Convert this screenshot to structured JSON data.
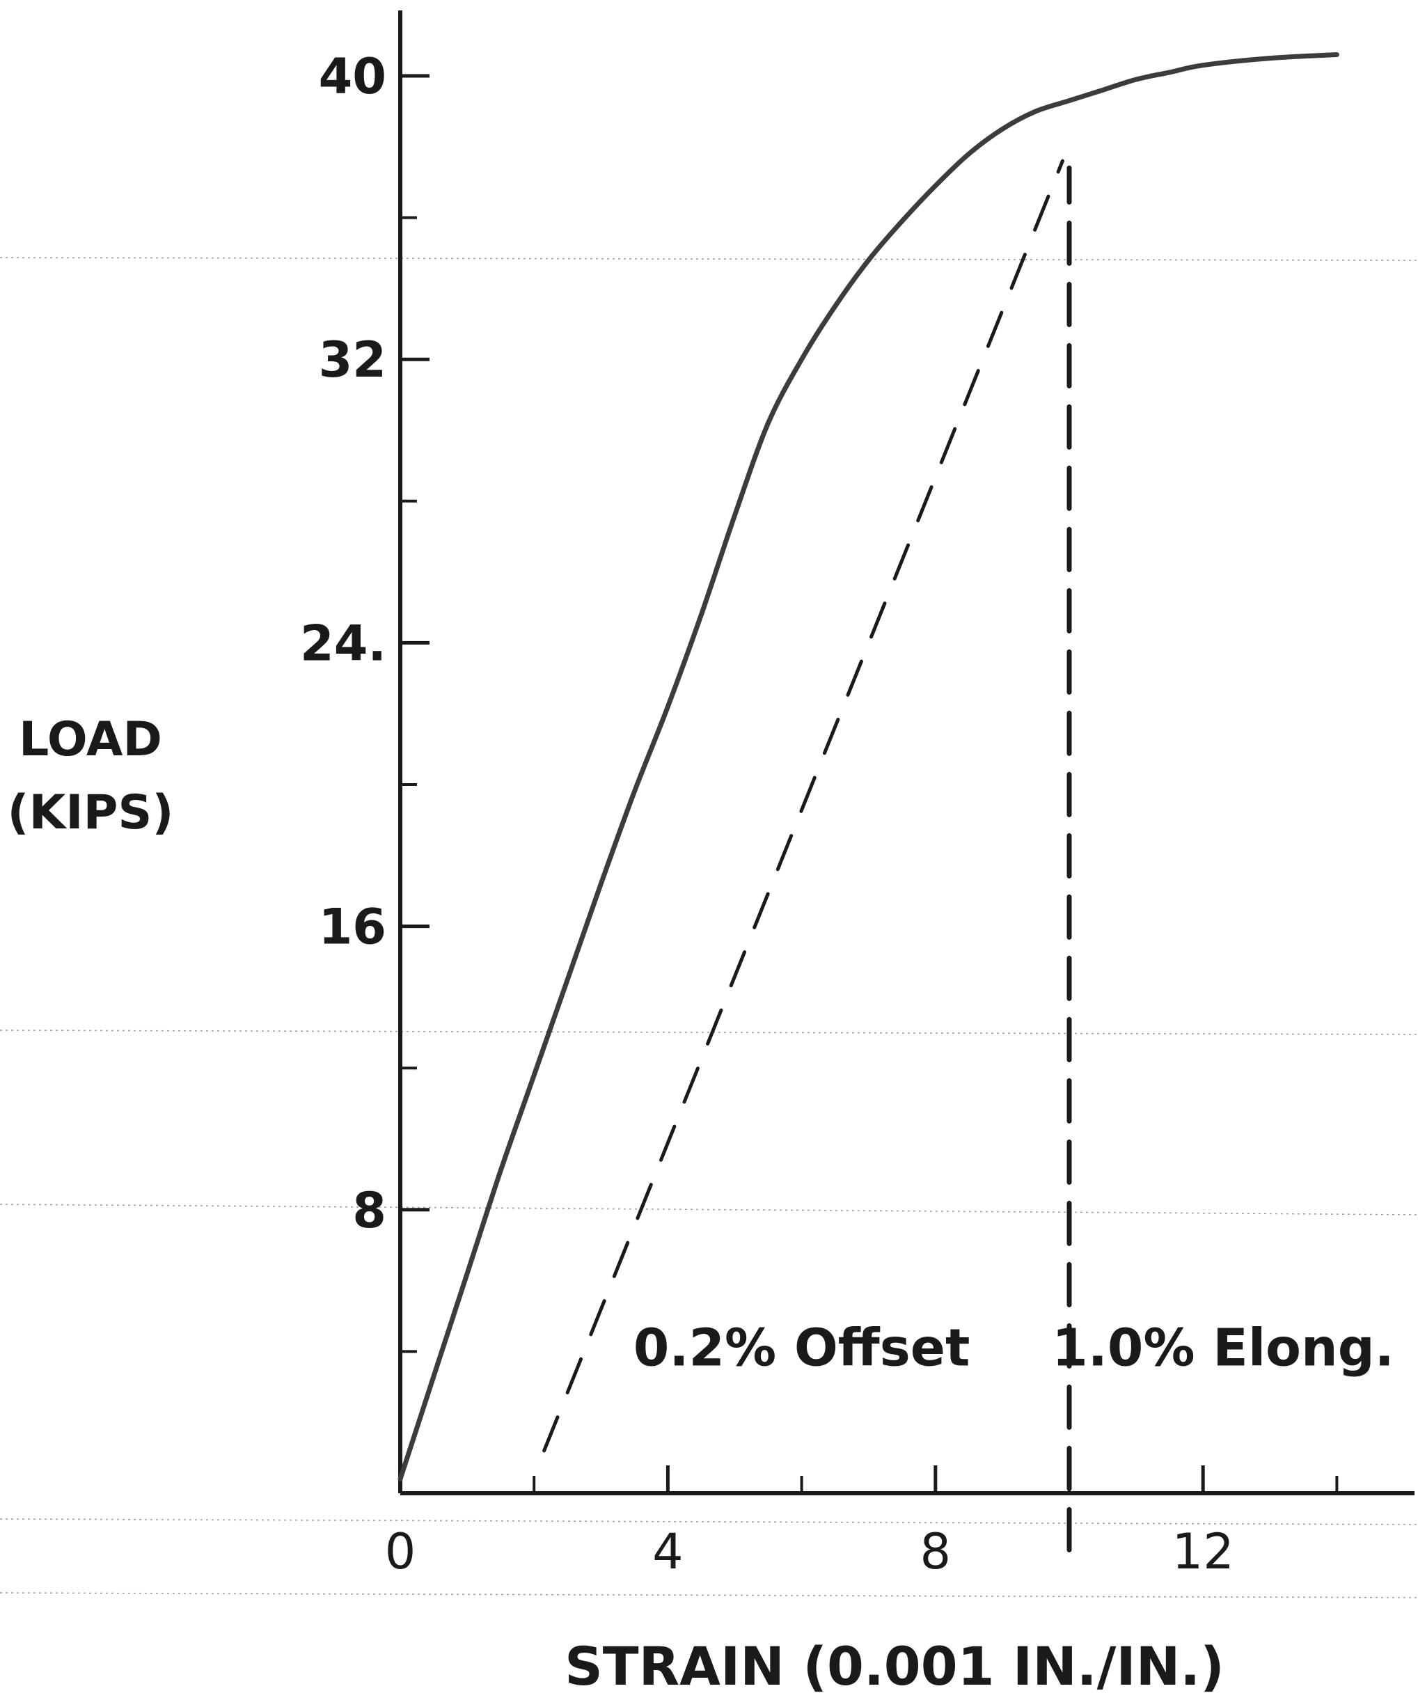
{
  "chart_data": {
    "type": "line",
    "title": "",
    "ylabel_line1": "LOAD",
    "ylabel_line2": "(KIPS)",
    "xlabel": "STRAIN (0.001 IN./IN.)",
    "xlim": [
      0,
      14
    ],
    "ylim": [
      0,
      41
    ],
    "x_major_ticks": [
      0,
      4,
      8,
      12
    ],
    "x_minor_ticks": [
      2,
      6,
      10,
      14
    ],
    "x_tick_labels": [
      "0",
      "4",
      "8",
      "12"
    ],
    "y_major_ticks": [
      8,
      16,
      24,
      32,
      40
    ],
    "y_minor_ticks": [
      4,
      12,
      20,
      28,
      36
    ],
    "y_tick_labels": [
      "8",
      "16",
      "24.",
      "32",
      "40"
    ],
    "grid": false,
    "series": [
      {
        "style": "solid",
        "x": [
          0,
          0.5,
          1.0,
          1.5,
          2.0,
          2.5,
          3.0,
          3.5,
          4.0,
          4.5,
          5.0,
          5.5,
          6.0,
          6.5,
          7.0,
          7.5,
          8.0,
          8.5,
          9.0,
          9.5,
          10.0,
          10.5,
          11.0,
          11.5,
          12.0,
          13.0,
          14.0
        ],
        "y": [
          0.4,
          3.3,
          6.2,
          9.1,
          11.8,
          14.5,
          17.2,
          19.8,
          22.2,
          24.8,
          27.6,
          30.2,
          32.0,
          33.5,
          34.8,
          35.9,
          36.9,
          37.8,
          38.5,
          39.0,
          39.3,
          39.6,
          39.9,
          40.1,
          40.3,
          40.5,
          40.6
        ]
      },
      {
        "style": "dashed",
        "x": [
          2.15,
          9.9
        ],
        "y": [
          1.2,
          37.6
        ]
      },
      {
        "style": "dashed",
        "x": [
          10.0,
          10.0
        ],
        "y": [
          -1.6,
          37.4
        ]
      }
    ],
    "annotations": [
      {
        "text": "0.2% Offset",
        "x": 6.0,
        "y": 4.1
      },
      {
        "text": "1.0% Elong.",
        "x": 12.3,
        "y": 4.1
      }
    ]
  }
}
